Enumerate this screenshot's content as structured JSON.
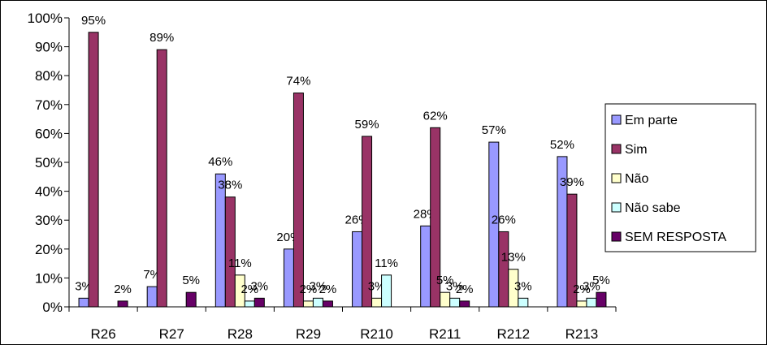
{
  "chart_data": {
    "type": "bar",
    "categories": [
      "R26",
      "R27",
      "R28",
      "R29",
      "R210",
      "R211",
      "R212",
      "R213"
    ],
    "series": [
      {
        "name": "Em parte",
        "color": "#9999ff",
        "values": [
          3,
          7,
          46,
          20,
          26,
          28,
          57,
          52
        ],
        "labels": [
          "3%",
          "7%",
          "46%",
          "20%",
          "26%",
          "28%",
          "57%",
          "52%"
        ]
      },
      {
        "name": "Sim",
        "color": "#993366",
        "values": [
          95,
          89,
          38,
          74,
          59,
          62,
          26,
          39
        ],
        "labels": [
          "95%",
          "89%",
          "38%",
          "74%",
          "59%",
          "62%",
          "26%",
          "39%"
        ]
      },
      {
        "name": "Não",
        "color": "#ffffcc",
        "values": [
          0,
          0,
          11,
          2,
          3,
          5,
          13,
          2
        ],
        "labels": [
          "",
          "",
          "11%",
          "2%",
          "3%",
          "5%",
          "13%",
          "2%"
        ]
      },
      {
        "name": "Não sabe",
        "color": "#ccffff",
        "values": [
          0,
          0,
          2,
          3,
          11,
          3,
          3,
          3
        ],
        "labels": [
          "",
          "",
          "2%",
          "3%",
          "11%",
          "3%",
          "3%",
          "3%"
        ]
      },
      {
        "name": "SEM RESPOSTA",
        "color": "#660066",
        "values": [
          2,
          5,
          3,
          2,
          0,
          2,
          0,
          5
        ],
        "labels": [
          "2%",
          "5%",
          "3%",
          "2%",
          "",
          "2%",
          "",
          "5%"
        ]
      }
    ],
    "y_ticks": [
      "0%",
      "10%",
      "20%",
      "30%",
      "40%",
      "50%",
      "60%",
      "70%",
      "80%",
      "90%",
      "100%"
    ],
    "ylim": [
      0,
      100
    ],
    "legend_position": "right",
    "grid": false
  }
}
